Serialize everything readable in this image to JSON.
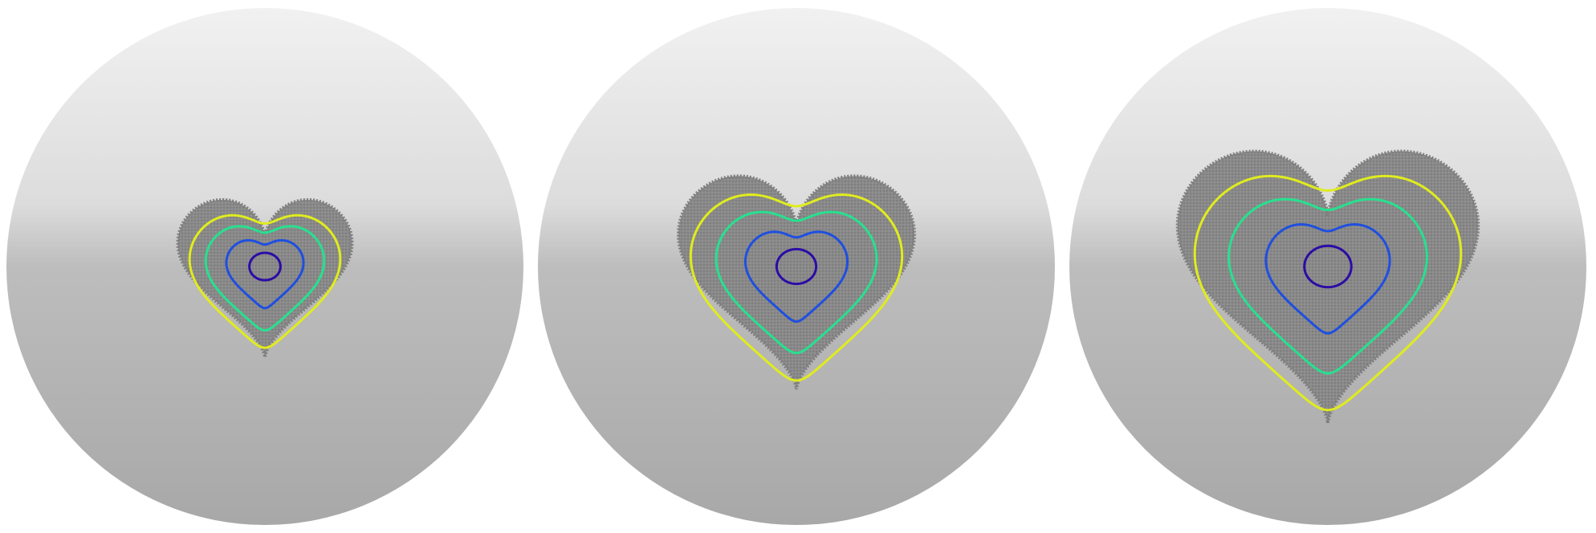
{
  "figure": {
    "description_colors": {
      "sphere_top": "#efefef",
      "sphere_mid": "#d6d6d6",
      "sphere_bottom": "#a9a9a9",
      "point_cloud": "#7f7f7f"
    },
    "panels": [
      {
        "id": "panel-1",
        "heart_scale": 0.62,
        "contours": [
          {
            "level": 1,
            "color": "#2b0ca6",
            "scale": 0.16
          },
          {
            "level": 2,
            "color": "#1f4fe0",
            "scale": 0.43
          },
          {
            "level": 3,
            "color": "#27e08f",
            "scale": 0.66
          },
          {
            "level": 4,
            "color": "#e0ec1e",
            "scale": 0.84
          }
        ]
      },
      {
        "id": "panel-2",
        "heart_scale": 0.84,
        "contours": [
          {
            "level": 1,
            "color": "#2b0ca6",
            "scale": 0.15
          },
          {
            "level": 2,
            "color": "#1f4fe0",
            "scale": 0.42
          },
          {
            "level": 3,
            "color": "#27e08f",
            "scale": 0.66
          },
          {
            "level": 4,
            "color": "#e0ec1e",
            "scale": 0.87
          }
        ]
      },
      {
        "id": "panel-3",
        "heart_scale": 1.07,
        "contours": [
          {
            "level": 1,
            "color": "#2b0ca6",
            "scale": 0.14
          },
          {
            "level": 2,
            "color": "#1f4fe0",
            "scale": 0.4
          },
          {
            "level": 3,
            "color": "#27e08f",
            "scale": 0.64
          },
          {
            "level": 4,
            "color": "#e0ec1e",
            "scale": 0.86
          }
        ]
      }
    ]
  }
}
